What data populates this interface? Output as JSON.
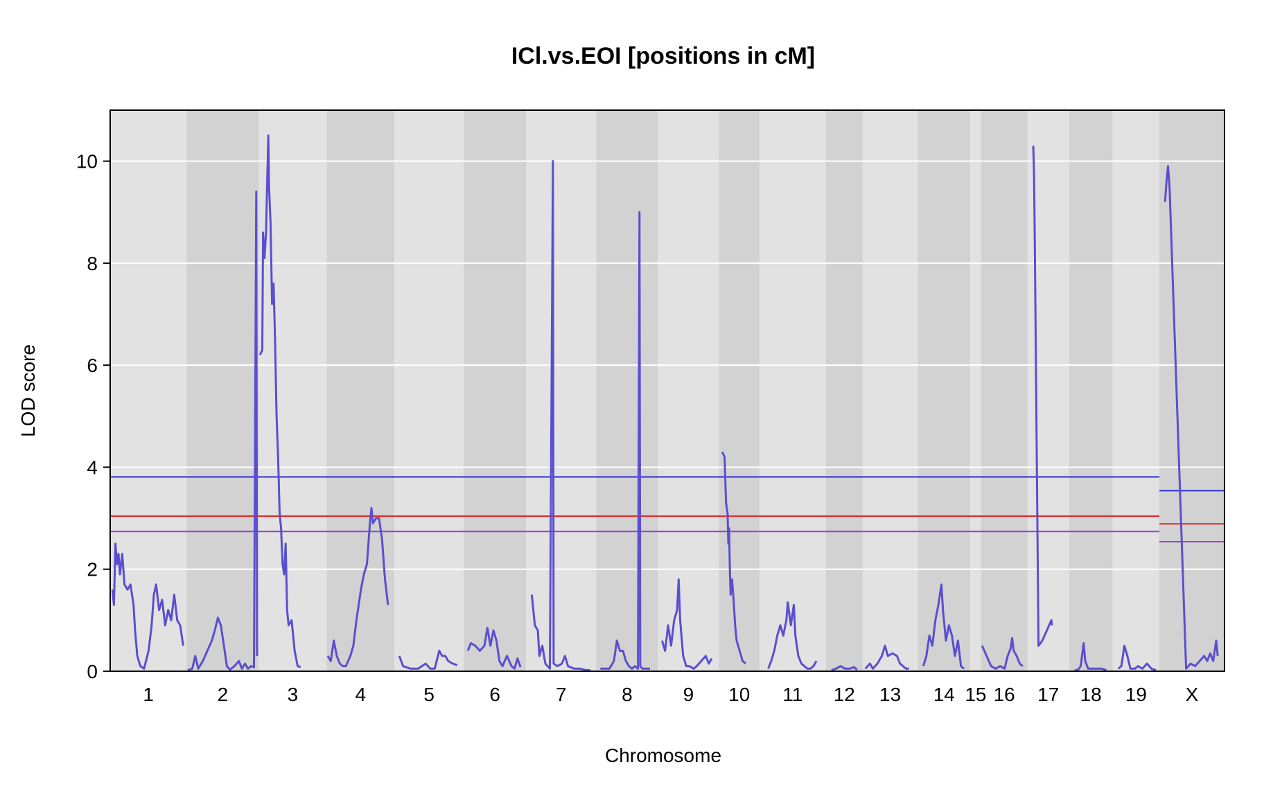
{
  "chart_data": {
    "type": "line",
    "title": "ICl.vs.EOI [positions in cM]",
    "xlabel": "Chromosome",
    "ylabel": "LOD score",
    "ylim": [
      0,
      11
    ],
    "yticks": [
      0,
      2,
      4,
      6,
      8,
      10
    ],
    "grid": true,
    "colors": {
      "lod_line": "#5a4fcf",
      "band_light": "#e2e2e2",
      "band_dark": "#d2d2d2",
      "grid": "#ffffff",
      "threshold_high": "#2b2bd6",
      "threshold_mid": "#e82020",
      "threshold_low": "#9a3bd6"
    },
    "chromosomes": [
      {
        "name": "1",
        "len": 97,
        "points": [
          [
            0,
            1.6
          ],
          [
            2,
            1.3
          ],
          [
            4,
            2.5
          ],
          [
            6,
            2.1
          ],
          [
            8,
            2.3
          ],
          [
            10,
            1.9
          ],
          [
            13,
            2.3
          ],
          [
            16,
            1.7
          ],
          [
            20,
            1.6
          ],
          [
            24,
            1.7
          ],
          [
            28,
            1.3
          ],
          [
            30,
            0.8
          ],
          [
            33,
            0.3
          ],
          [
            37,
            0.1
          ],
          [
            42,
            0.05
          ],
          [
            48,
            0.4
          ],
          [
            52,
            0.9
          ],
          [
            55,
            1.5
          ],
          [
            58,
            1.7
          ],
          [
            62,
            1.2
          ],
          [
            66,
            1.4
          ],
          [
            70,
            0.9
          ],
          [
            74,
            1.2
          ],
          [
            78,
            1.0
          ],
          [
            82,
            1.5
          ],
          [
            86,
            1.0
          ],
          [
            90,
            0.9
          ],
          [
            94,
            0.5
          ]
        ]
      },
      {
        "name": "2",
        "len": 93,
        "points": [
          [
            0,
            0.02
          ],
          [
            6,
            0.05
          ],
          [
            10,
            0.3
          ],
          [
            14,
            0.05
          ],
          [
            20,
            0.2
          ],
          [
            26,
            0.4
          ],
          [
            32,
            0.6
          ],
          [
            36,
            0.8
          ],
          [
            40,
            1.05
          ],
          [
            44,
            0.9
          ],
          [
            48,
            0.5
          ],
          [
            52,
            0.1
          ],
          [
            56,
            0.03
          ],
          [
            62,
            0.1
          ],
          [
            68,
            0.2
          ],
          [
            72,
            0.05
          ],
          [
            76,
            0.15
          ],
          [
            80,
            0.05
          ],
          [
            84,
            0.1
          ],
          [
            88,
            0.08
          ],
          [
            91,
            9.4
          ],
          [
            92,
            0.3
          ]
        ]
      },
      {
        "name": "3",
        "len": 87,
        "points": [
          [
            0,
            6.2
          ],
          [
            3,
            6.3
          ],
          [
            4,
            8.6
          ],
          [
            6,
            8.1
          ],
          [
            8,
            8.6
          ],
          [
            10,
            9.9
          ],
          [
            11,
            10.5
          ],
          [
            12,
            9.5
          ],
          [
            14,
            8.8
          ],
          [
            16,
            7.2
          ],
          [
            18,
            7.6
          ],
          [
            20,
            6.5
          ],
          [
            22,
            5.0
          ],
          [
            24,
            4.2
          ],
          [
            26,
            3.1
          ],
          [
            28,
            2.8
          ],
          [
            30,
            2.1
          ],
          [
            32,
            1.9
          ],
          [
            34,
            2.5
          ],
          [
            36,
            1.2
          ],
          [
            38,
            0.9
          ],
          [
            42,
            1.0
          ],
          [
            46,
            0.4
          ],
          [
            50,
            0.1
          ],
          [
            54,
            0.08
          ]
        ]
      },
      {
        "name": "4",
        "len": 87,
        "points": [
          [
            0,
            0.3
          ],
          [
            4,
            0.2
          ],
          [
            8,
            0.6
          ],
          [
            12,
            0.3
          ],
          [
            16,
            0.15
          ],
          [
            20,
            0.1
          ],
          [
            24,
            0.1
          ],
          [
            30,
            0.3
          ],
          [
            34,
            0.5
          ],
          [
            38,
            1.0
          ],
          [
            40,
            1.2
          ],
          [
            44,
            1.6
          ],
          [
            48,
            1.9
          ],
          [
            52,
            2.1
          ],
          [
            56,
            2.9
          ],
          [
            58,
            3.2
          ],
          [
            60,
            2.9
          ],
          [
            64,
            3.0
          ],
          [
            68,
            3.0
          ],
          [
            72,
            2.6
          ],
          [
            76,
            1.8
          ],
          [
            80,
            1.3
          ]
        ]
      },
      {
        "name": "5",
        "len": 89,
        "points": [
          [
            5,
            0.3
          ],
          [
            10,
            0.1
          ],
          [
            20,
            0.05
          ],
          [
            30,
            0.05
          ],
          [
            40,
            0.15
          ],
          [
            46,
            0.05
          ],
          [
            52,
            0.05
          ],
          [
            58,
            0.4
          ],
          [
            62,
            0.3
          ],
          [
            66,
            0.3
          ],
          [
            70,
            0.2
          ],
          [
            76,
            0.15
          ],
          [
            82,
            0.12
          ]
        ]
      },
      {
        "name": "6",
        "len": 80,
        "points": [
          [
            4,
            0.4
          ],
          [
            8,
            0.55
          ],
          [
            14,
            0.5
          ],
          [
            20,
            0.4
          ],
          [
            26,
            0.5
          ],
          [
            30,
            0.85
          ],
          [
            34,
            0.5
          ],
          [
            38,
            0.8
          ],
          [
            42,
            0.6
          ],
          [
            46,
            0.2
          ],
          [
            50,
            0.1
          ],
          [
            56,
            0.3
          ],
          [
            62,
            0.1
          ],
          [
            66,
            0.05
          ],
          [
            70,
            0.25
          ],
          [
            74,
            0.08
          ]
        ]
      },
      {
        "name": "7",
        "len": 90,
        "points": [
          [
            6,
            1.5
          ],
          [
            10,
            0.9
          ],
          [
            14,
            0.8
          ],
          [
            16,
            0.3
          ],
          [
            20,
            0.5
          ],
          [
            24,
            0.15
          ],
          [
            30,
            0.05
          ],
          [
            34,
            10.0
          ],
          [
            35,
            0.15
          ],
          [
            40,
            0.1
          ],
          [
            46,
            0.15
          ],
          [
            50,
            0.3
          ],
          [
            54,
            0.1
          ],
          [
            62,
            0.05
          ],
          [
            70,
            0.05
          ],
          [
            78,
            0.02
          ],
          [
            84,
            0.02
          ]
        ]
      },
      {
        "name": "8",
        "len": 79,
        "points": [
          [
            4,
            0.05
          ],
          [
            10,
            0.05
          ],
          [
            16,
            0.05
          ],
          [
            22,
            0.2
          ],
          [
            26,
            0.6
          ],
          [
            30,
            0.4
          ],
          [
            34,
            0.4
          ],
          [
            38,
            0.2
          ],
          [
            42,
            0.1
          ],
          [
            46,
            0.05
          ],
          [
            50,
            0.1
          ],
          [
            54,
            0.05
          ],
          [
            56,
            9.0
          ],
          [
            57,
            0.1
          ],
          [
            60,
            0.05
          ],
          [
            66,
            0.05
          ],
          [
            70,
            0.05
          ]
        ]
      },
      {
        "name": "9",
        "len": 78,
        "points": [
          [
            4,
            0.6
          ],
          [
            8,
            0.4
          ],
          [
            12,
            0.9
          ],
          [
            16,
            0.5
          ],
          [
            20,
            1.0
          ],
          [
            24,
            1.2
          ],
          [
            26,
            1.8
          ],
          [
            28,
            1.0
          ],
          [
            32,
            0.3
          ],
          [
            36,
            0.1
          ],
          [
            40,
            0.1
          ],
          [
            46,
            0.05
          ],
          [
            50,
            0.1
          ],
          [
            56,
            0.2
          ],
          [
            62,
            0.3
          ],
          [
            66,
            0.15
          ],
          [
            70,
            0.25
          ]
        ]
      },
      {
        "name": "10",
        "len": 51,
        "points": [
          [
            3,
            4.3
          ],
          [
            6,
            4.2
          ],
          [
            8,
            3.3
          ],
          [
            10,
            3.1
          ],
          [
            11,
            2.5
          ],
          [
            12,
            2.8
          ],
          [
            13,
            2.0
          ],
          [
            14,
            1.5
          ],
          [
            16,
            1.8
          ],
          [
            18,
            1.4
          ],
          [
            20,
            0.9
          ],
          [
            22,
            0.6
          ],
          [
            26,
            0.4
          ],
          [
            30,
            0.2
          ],
          [
            34,
            0.15
          ]
        ]
      },
      {
        "name": "11",
        "len": 85,
        "points": [
          [
            10,
            0.05
          ],
          [
            14,
            0.2
          ],
          [
            18,
            0.4
          ],
          [
            22,
            0.7
          ],
          [
            26,
            0.9
          ],
          [
            30,
            0.7
          ],
          [
            34,
            1.0
          ],
          [
            36,
            1.35
          ],
          [
            40,
            0.9
          ],
          [
            44,
            1.3
          ],
          [
            46,
            0.7
          ],
          [
            50,
            0.3
          ],
          [
            54,
            0.15
          ],
          [
            58,
            0.1
          ],
          [
            62,
            0.05
          ],
          [
            66,
            0.05
          ],
          [
            70,
            0.1
          ],
          [
            74,
            0.2
          ]
        ]
      },
      {
        "name": "12",
        "len": 46,
        "points": [
          [
            6,
            0.02
          ],
          [
            12,
            0.05
          ],
          [
            18,
            0.1
          ],
          [
            24,
            0.05
          ],
          [
            30,
            0.05
          ],
          [
            36,
            0.08
          ],
          [
            40,
            0.03
          ]
        ]
      },
      {
        "name": "13",
        "len": 70,
        "points": [
          [
            2,
            0.05
          ],
          [
            8,
            0.15
          ],
          [
            12,
            0.05
          ],
          [
            18,
            0.15
          ],
          [
            24,
            0.3
          ],
          [
            28,
            0.5
          ],
          [
            32,
            0.3
          ],
          [
            38,
            0.35
          ],
          [
            44,
            0.3
          ],
          [
            48,
            0.15
          ],
          [
            52,
            0.1
          ],
          [
            56,
            0.05
          ],
          [
            60,
            0.05
          ]
        ]
      },
      {
        "name": "14",
        "len": 67,
        "points": [
          [
            6,
            0.1
          ],
          [
            10,
            0.3
          ],
          [
            14,
            0.7
          ],
          [
            18,
            0.5
          ],
          [
            22,
            1.0
          ],
          [
            26,
            1.3
          ],
          [
            30,
            1.7
          ],
          [
            32,
            1.2
          ],
          [
            36,
            0.6
          ],
          [
            40,
            0.9
          ],
          [
            44,
            0.7
          ],
          [
            48,
            0.3
          ],
          [
            52,
            0.6
          ],
          [
            56,
            0.1
          ],
          [
            60,
            0.05
          ]
        ]
      },
      {
        "name": "15",
        "len": 11,
        "points": []
      },
      {
        "name": "16",
        "len": 59,
        "points": [
          [
            0,
            0.5
          ],
          [
            6,
            0.3
          ],
          [
            12,
            0.1
          ],
          [
            18,
            0.05
          ],
          [
            24,
            0.1
          ],
          [
            30,
            0.05
          ],
          [
            34,
            0.3
          ],
          [
            38,
            0.45
          ],
          [
            40,
            0.65
          ],
          [
            42,
            0.4
          ],
          [
            46,
            0.3
          ],
          [
            50,
            0.15
          ],
          [
            54,
            0.1
          ]
        ]
      },
      {
        "name": "17",
        "len": 52,
        "points": [
          [
            6,
            10.3
          ],
          [
            7,
            9.8
          ],
          [
            8,
            8.5
          ],
          [
            13,
            0.5
          ],
          [
            18,
            0.6
          ],
          [
            24,
            0.8
          ],
          [
            30,
            1.0
          ],
          [
            31,
            0.9
          ]
        ]
      },
      {
        "name": "18",
        "len": 55,
        "points": [
          [
            6,
            0.02
          ],
          [
            10,
            0.02
          ],
          [
            14,
            0.1
          ],
          [
            18,
            0.55
          ],
          [
            20,
            0.2
          ],
          [
            24,
            0.05
          ],
          [
            30,
            0.05
          ],
          [
            36,
            0.05
          ],
          [
            42,
            0.05
          ],
          [
            48,
            0.02
          ]
        ]
      },
      {
        "name": "19",
        "len": 59,
        "points": [
          [
            6,
            0.05
          ],
          [
            10,
            0.1
          ],
          [
            14,
            0.5
          ],
          [
            18,
            0.3
          ],
          [
            22,
            0.05
          ],
          [
            28,
            0.05
          ],
          [
            32,
            0.1
          ],
          [
            38,
            0.05
          ],
          [
            44,
            0.15
          ],
          [
            50,
            0.05
          ],
          [
            56,
            0.02
          ]
        ]
      },
      {
        "name": "X",
        "len": 82,
        "points": [
          [
            6,
            9.2
          ],
          [
            8,
            9.6
          ],
          [
            10,
            9.9
          ],
          [
            12,
            9.5
          ],
          [
            34,
            0.05
          ],
          [
            40,
            0.15
          ],
          [
            46,
            0.1
          ],
          [
            52,
            0.2
          ],
          [
            58,
            0.3
          ],
          [
            62,
            0.2
          ],
          [
            66,
            0.35
          ],
          [
            70,
            0.2
          ],
          [
            74,
            0.6
          ],
          [
            76,
            0.3
          ]
        ]
      }
    ],
    "thresholds": {
      "autosomes": [
        3.81,
        3.04,
        2.74
      ],
      "x": [
        3.54,
        2.89,
        2.54
      ]
    }
  }
}
